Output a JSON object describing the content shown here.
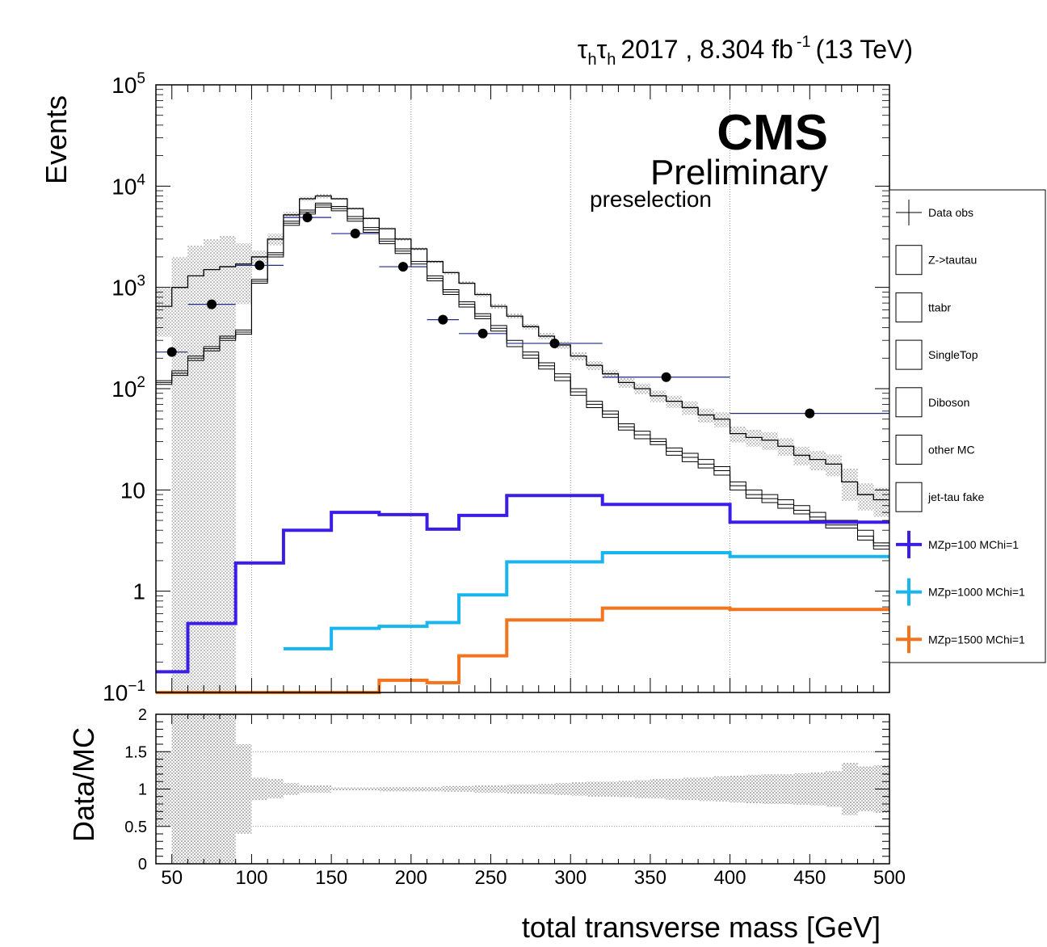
{
  "header": {
    "title_tau": "τ",
    "title_sub": "h",
    "title_rest": "2017 , 8.304 fb",
    "title_sup": "-1",
    "title_energy": "(13 TeV)"
  },
  "labels": {
    "cms": "CMS",
    "preliminary": "Preliminary",
    "selection": "preselection",
    "ylabel_top": "Events",
    "ylabel_bottom": "Data/MC",
    "xlabel": "total transverse mass [GeV]"
  },
  "legend": [
    {
      "label": "Data obs",
      "style": "data"
    },
    {
      "label": "Z->tautau",
      "style": "box"
    },
    {
      "label": "ttabr",
      "style": "box"
    },
    {
      "label": "SingleTop",
      "style": "box"
    },
    {
      "label": "Diboson",
      "style": "box"
    },
    {
      "label": "other MC",
      "style": "box"
    },
    {
      "label": "jet-tau fake",
      "style": "box"
    },
    {
      "label": "MZp=100 MChi=1",
      "style": "line",
      "color": "#3b1ee6"
    },
    {
      "label": "MZp=1000 MChi=1",
      "style": "line",
      "color": "#19b5ee"
    },
    {
      "label": "MZp=1500 MChi=1",
      "style": "line",
      "color": "#f3741c"
    }
  ],
  "chart_data": [
    {
      "type": "line",
      "title": "",
      "xlabel": "total transverse mass [GeV]",
      "ylabel": "Events",
      "xlim": [
        40,
        500
      ],
      "ylim": [
        0.1,
        100000
      ],
      "yscale": "log",
      "grid": "vertical",
      "legend_position": "right",
      "x_ticks": [
        "50",
        "100",
        "150",
        "200",
        "250",
        "300",
        "350",
        "400",
        "450",
        "500"
      ],
      "y_ticks": [
        "10^-1",
        "1",
        "10",
        "10^2",
        "10^3",
        "10^4",
        "10^5"
      ],
      "bins": [
        40,
        50,
        60,
        70,
        80,
        90,
        100,
        110,
        120,
        130,
        140,
        150,
        160,
        170,
        180,
        190,
        200,
        210,
        220,
        230,
        240,
        250,
        260,
        270,
        280,
        290,
        300,
        310,
        320,
        330,
        340,
        350,
        360,
        370,
        380,
        390,
        400,
        410,
        420,
        430,
        440,
        450,
        460,
        470,
        480,
        490,
        500
      ],
      "stack_total": [
        650,
        1000,
        1300,
        1500,
        1600,
        1700,
        2000,
        3000,
        5200,
        7500,
        8000,
        7500,
        6000,
        4800,
        3800,
        3000,
        2400,
        1800,
        1400,
        1100,
        850,
        650,
        520,
        410,
        330,
        270,
        210,
        170,
        140,
        115,
        100,
        85,
        75,
        65,
        55,
        50,
        36,
        33,
        31,
        27,
        22,
        20,
        18,
        12,
        9,
        8
      ],
      "background_series": [
        {
          "name": "jet-tau fake",
          "values": [
            120,
            150,
            210,
            260,
            330,
            380,
            1200,
            2200,
            4500,
            5800,
            6800,
            6300,
            5000,
            3900,
            3000,
            2400,
            1800,
            1300,
            950,
            720,
            550,
            420,
            300,
            230,
            180,
            140,
            100,
            75,
            60,
            45,
            38,
            32,
            26,
            23,
            20,
            17,
            12,
            10,
            9,
            8,
            7,
            6,
            5,
            5,
            4,
            3
          ]
        },
        {
          "name": "Z->tautau",
          "values": [
            115,
            142,
            200,
            248,
            315,
            362,
            1150,
            2100,
            4300,
            5550,
            6500,
            6000,
            4750,
            3700,
            2850,
            2280,
            1700,
            1230,
            900,
            680,
            520,
            395,
            280,
            215,
            168,
            130,
            93,
            70,
            56,
            42,
            35,
            30,
            24,
            21,
            18,
            15.5,
            11,
            9,
            8.2,
            7.2,
            6.3,
            5.4,
            4.5,
            4.5,
            3.5,
            2.8
          ]
        },
        {
          "name": "ttabr",
          "values": [
            110,
            135,
            190,
            236,
            300,
            345,
            1100,
            2000,
            4100,
            5300,
            6200,
            5700,
            4500,
            3500,
            2700,
            2160,
            1600,
            1160,
            850,
            640,
            490,
            370,
            260,
            200,
            156,
            120,
            86,
            65,
            52,
            39,
            32,
            28,
            22,
            19,
            16.5,
            14,
            10,
            8.3,
            7.5,
            6.6,
            5.8,
            5,
            4.2,
            4.2,
            3.2,
            2.6
          ]
        }
      ],
      "data_points": [
        {
          "x": 50,
          "y": 230,
          "xerr": 10
        },
        {
          "x": 75,
          "y": 680,
          "xerr": 15
        },
        {
          "x": 105,
          "y": 1650,
          "xerr": 15
        },
        {
          "x": 135,
          "y": 4900,
          "xerr": 15
        },
        {
          "x": 165,
          "y": 3400,
          "xerr": 15
        },
        {
          "x": 195,
          "y": 1600,
          "xerr": 15
        },
        {
          "x": 220,
          "y": 480,
          "xerr": 10
        },
        {
          "x": 245,
          "y": 350,
          "xerr": 15
        },
        {
          "x": 290,
          "y": 280,
          "xerr": 30
        },
        {
          "x": 360,
          "y": 130,
          "xerr": 40
        },
        {
          "x": 450,
          "y": 57,
          "xerr": 50
        }
      ],
      "signal_series": [
        {
          "name": "MZp=100 MChi=1",
          "color": "#3b1ee6",
          "edges": [
            40,
            60,
            90,
            120,
            150,
            180,
            210,
            230,
            260,
            320,
            400,
            500
          ],
          "values": [
            0.16,
            0.48,
            1.9,
            4.0,
            6.0,
            5.7,
            4.1,
            5.6,
            8.8,
            7.2,
            4.8
          ]
        },
        {
          "name": "MZp=1000 MChi=1",
          "color": "#19b5ee",
          "edges": [
            120,
            150,
            180,
            210,
            230,
            260,
            320,
            400,
            500
          ],
          "values": [
            0.27,
            0.43,
            0.45,
            0.49,
            0.92,
            1.95,
            2.4,
            2.2
          ]
        },
        {
          "name": "MZp=1500 MChi=1",
          "color": "#f3741c",
          "edges": [
            40,
            180,
            210,
            230,
            260,
            320,
            400,
            500
          ],
          "values": [
            0.1,
            0.132,
            0.125,
            0.23,
            0.52,
            0.68,
            0.66
          ]
        }
      ]
    },
    {
      "type": "area",
      "title": "",
      "xlabel": "total transverse mass [GeV]",
      "ylabel": "Data/MC",
      "xlim": [
        40,
        500
      ],
      "ylim": [
        0,
        2
      ],
      "y_ticks": [
        "0",
        "0.5",
        "1",
        "1.5",
        "2"
      ],
      "grid": "horizontal",
      "bins": [
        40,
        50,
        60,
        70,
        80,
        90,
        100,
        110,
        120,
        130,
        140,
        150,
        160,
        170,
        180,
        190,
        200,
        210,
        220,
        230,
        240,
        250,
        260,
        270,
        280,
        290,
        300,
        310,
        320,
        330,
        340,
        350,
        360,
        370,
        380,
        390,
        400,
        410,
        420,
        430,
        440,
        450,
        460,
        470,
        480,
        490,
        500
      ],
      "uncertainty": [
        0.5,
        1.0,
        1.0,
        1.0,
        1.0,
        0.6,
        0.15,
        0.13,
        0.08,
        0.05,
        0.05,
        0.02,
        0.02,
        0.02,
        0.03,
        0.03,
        0.03,
        0.03,
        0.04,
        0.04,
        0.05,
        0.05,
        0.06,
        0.06,
        0.07,
        0.08,
        0.09,
        0.1,
        0.1,
        0.11,
        0.12,
        0.13,
        0.14,
        0.15,
        0.16,
        0.17,
        0.18,
        0.19,
        0.2,
        0.2,
        0.21,
        0.22,
        0.24,
        0.35,
        0.3,
        0.32
      ]
    }
  ]
}
